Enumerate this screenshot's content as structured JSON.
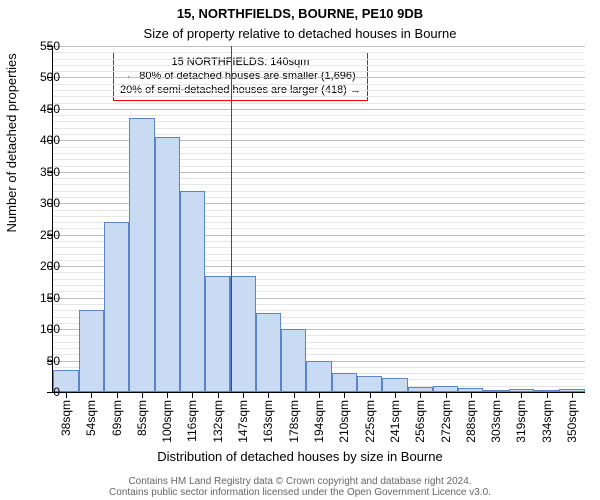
{
  "title": "15, NORTHFIELDS, BOURNE, PE10 9DB",
  "subtitle": "Size of property relative to detached houses in Bourne",
  "ylabel": "Number of detached properties",
  "xlabel": "Distribution of detached houses by size in Bourne",
  "footer": "Contains HM Land Registry data © Crown copyright and database right 2024.\nContains public sector information licensed under the Open Government Licence v3.0.",
  "chart": {
    "type": "histogram",
    "background_color": "#ffffff",
    "bar_fill": "#c9daf3",
    "bar_border": "#5b85c7",
    "bar_border_width": 1,
    "grid_color_major": "#bfbfbf",
    "grid_color_minor": "#e6e6e6",
    "axis_color": "#000000",
    "ref_line_color": "#ff0000",
    "ref_line_value_sqm": 140,
    "annotation_border": "#ff0000",
    "annotation_lines": [
      "15 NORTHFIELDS: 140sqm",
      "← 80% of detached houses are smaller (1,696)",
      "20% of semi-detached houses are larger (418) →"
    ],
    "ylim": [
      0,
      550
    ],
    "ytick_step_major": 50,
    "ytick_step_minor": 10,
    "xlim_sqm": [
      30,
      358
    ],
    "xtick_start_sqm": 38,
    "xtick_step_sqm": 15.6,
    "xtick_unit": "sqm",
    "bar_width_sqm": 15.6,
    "title_fontsize": 13,
    "subtitle_fontsize": 13,
    "axis_label_fontsize": 13,
    "tick_fontsize": 12,
    "annotation_fontsize": 11,
    "footer_fontsize": 10,
    "footer_color": "#666666",
    "bars": [
      {
        "x_sqm": 30.2,
        "value": 35
      },
      {
        "x_sqm": 45.8,
        "value": 130
      },
      {
        "x_sqm": 61.4,
        "value": 270
      },
      {
        "x_sqm": 77.0,
        "value": 435
      },
      {
        "x_sqm": 92.6,
        "value": 405
      },
      {
        "x_sqm": 108.2,
        "value": 320
      },
      {
        "x_sqm": 123.8,
        "value": 185
      },
      {
        "x_sqm": 139.4,
        "value": 185
      },
      {
        "x_sqm": 155.0,
        "value": 125
      },
      {
        "x_sqm": 170.6,
        "value": 100
      },
      {
        "x_sqm": 186.2,
        "value": 50
      },
      {
        "x_sqm": 201.8,
        "value": 30
      },
      {
        "x_sqm": 217.4,
        "value": 25
      },
      {
        "x_sqm": 233.0,
        "value": 22
      },
      {
        "x_sqm": 248.6,
        "value": 8
      },
      {
        "x_sqm": 264.2,
        "value": 10
      },
      {
        "x_sqm": 279.8,
        "value": 6
      },
      {
        "x_sqm": 295.4,
        "value": 3
      },
      {
        "x_sqm": 311.0,
        "value": 5
      },
      {
        "x_sqm": 326.6,
        "value": 3
      },
      {
        "x_sqm": 342.2,
        "value": 4
      }
    ],
    "xtick_labels": [
      "38sqm",
      "54sqm",
      "69sqm",
      "85sqm",
      "100sqm",
      "116sqm",
      "132sqm",
      "147sqm",
      "163sqm",
      "178sqm",
      "194sqm",
      "210sqm",
      "225sqm",
      "241sqm",
      "256sqm",
      "272sqm",
      "288sqm",
      "303sqm",
      "319sqm",
      "334sqm",
      "350sqm"
    ]
  }
}
